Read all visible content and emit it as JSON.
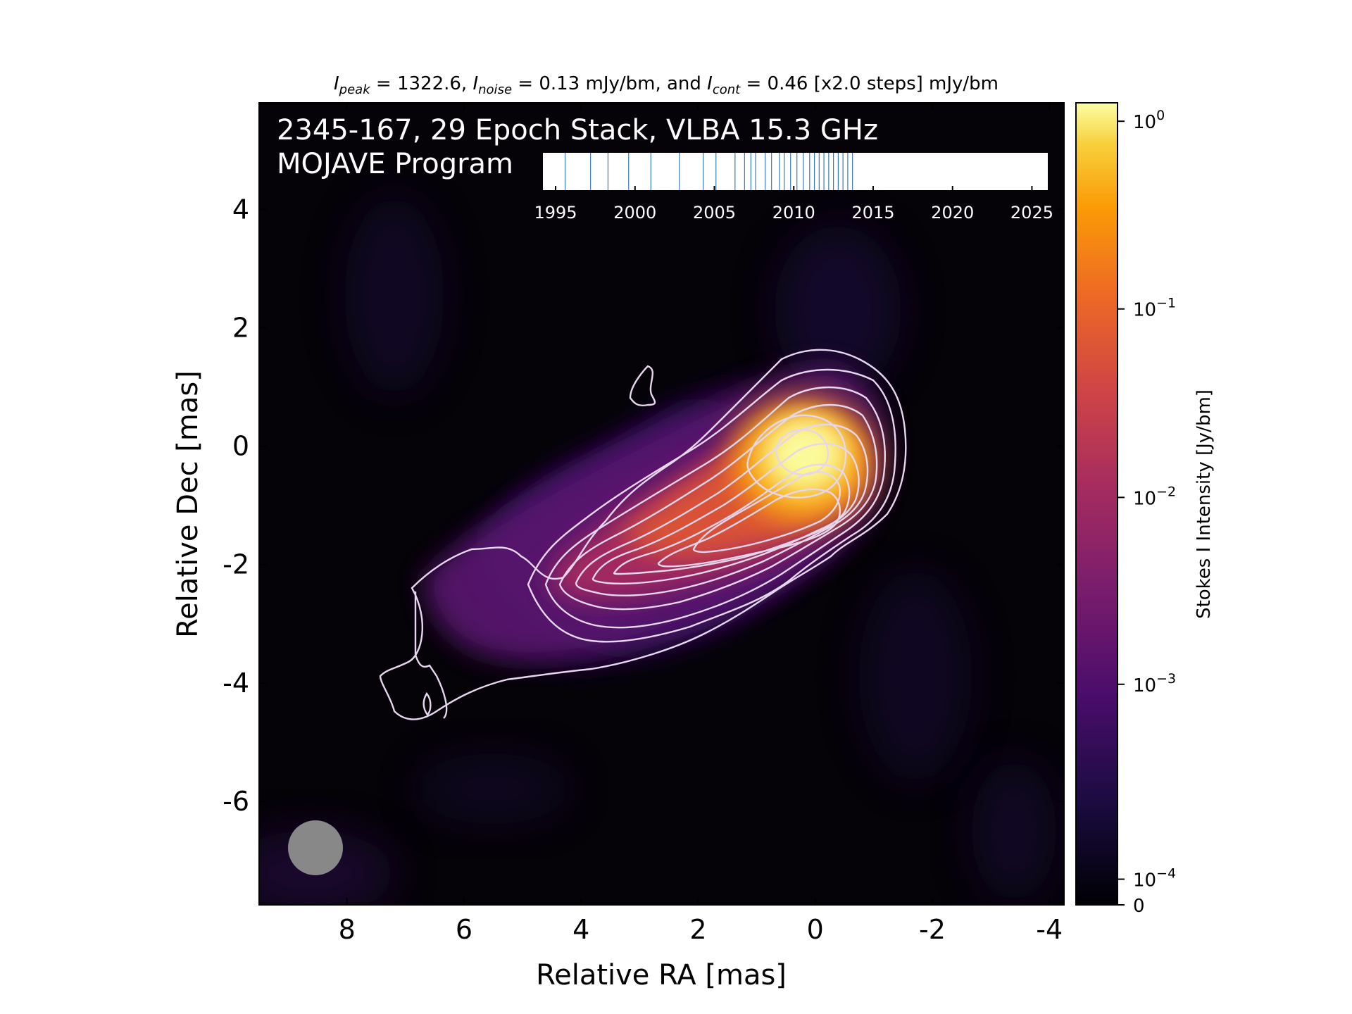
{
  "chart_data": {
    "type": "heatmap",
    "header": {
      "peak_sym": "I",
      "peak_sub": "peak",
      "peak_text": " = 1322.6, ",
      "noise_sym": "I",
      "noise_sub": "noise",
      "noise_text": " = 0.13 mJy/bm, and ",
      "cont_sym": "I",
      "cont_sub": "cont",
      "cont_text": " = 0.46 [x2.0 steps] mJy/bm"
    },
    "title_line1": "2345-167, 29 Epoch Stack, VLBA 15.3 GHz",
    "title_line2": "MOJAVE Program",
    "xlabel": "Relative RA [mas]",
    "ylabel": "Relative Dec [mas]",
    "xlim": [
      9.5,
      -4.25
    ],
    "ylim": [
      -7.75,
      5.8
    ],
    "xticks": [
      8,
      6,
      4,
      2,
      0,
      -2,
      -4
    ],
    "xtick_labels": [
      "8",
      "6",
      "4",
      "2",
      "0",
      "-2",
      "-4"
    ],
    "yticks": [
      4,
      2,
      0,
      -2,
      -4,
      -6
    ],
    "ytick_labels": [
      "4",
      "2",
      "0",
      "-2",
      "-4",
      "-6"
    ],
    "peak_position": [
      0.0,
      -0.1
    ],
    "colorbar": {
      "label": "Stokes I Intensity [Jy/bm]",
      "scale": "symlog",
      "colormap": "inferno",
      "ticks": [
        {
          "base": "10",
          "exp": "0"
        },
        {
          "base": "10",
          "exp": "−1"
        },
        {
          "base": "10",
          "exp": "−2"
        },
        {
          "base": "10",
          "exp": "−3"
        },
        {
          "base": "10",
          "exp": "−4"
        },
        {
          "base": "0",
          "exp": ""
        }
      ],
      "max": 1.3226
    },
    "contours": {
      "color": "#e6d6ee",
      "base_mJy": 0.46,
      "step_factor": 2.0,
      "levels_count": 12
    },
    "epoch_timeline": {
      "tick_years": [
        1995,
        2000,
        2005,
        2010,
        2015,
        2020,
        2025
      ],
      "tick_labels": [
        "1995",
        "2000",
        "2005",
        "2010",
        "2015",
        "2020",
        "2025"
      ],
      "range": [
        1994.2,
        2026.0
      ],
      "epochs": [
        1995.6,
        1997.2,
        1998.3,
        1999.6,
        2001.0,
        2002.8,
        2004.3,
        2005.1,
        2006.3,
        2006.9,
        2007.3,
        2007.6,
        2008.2,
        2008.6,
        2009.1,
        2009.4,
        2009.8,
        2010.2,
        2010.6,
        2011.0,
        2011.3,
        2011.6,
        2011.9,
        2012.2,
        2012.5,
        2012.8,
        2013.1,
        2013.4,
        2013.7
      ],
      "line_color": "#3a7ab8"
    },
    "beam": {
      "x": 8.5,
      "y": -6.85,
      "color": "#888888"
    }
  }
}
